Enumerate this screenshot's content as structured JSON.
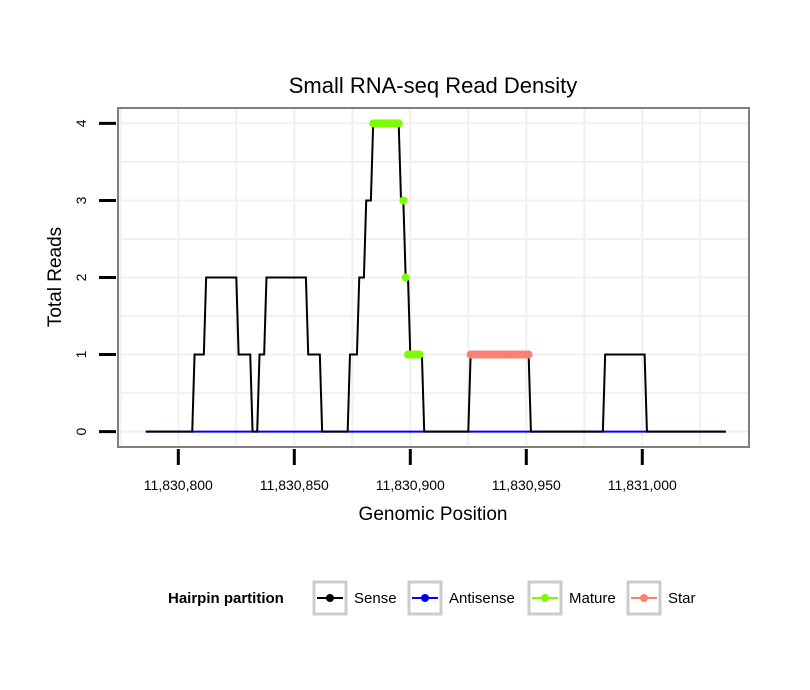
{
  "chart_data": {
    "type": "line",
    "title": "Small RNA-seq Read Density",
    "xlabel": "Genomic Position",
    "ylabel": "Total Reads",
    "xlim": [
      11830774,
      11831046
    ],
    "ylim": [
      -0.2,
      4.2
    ],
    "xticks": [
      11830800,
      11830850,
      11830900,
      11830950,
      11831000
    ],
    "xtick_labels": [
      "11,830,800",
      "11,830,850",
      "11,830,900",
      "11,830,950",
      "11,831,000"
    ],
    "yticks": [
      0,
      1,
      2,
      3,
      4
    ],
    "ytick_labels": [
      "0",
      "1",
      "2",
      "3",
      "4"
    ],
    "grid": true,
    "legend": {
      "title": "Hairpin partition",
      "position": "bottom",
      "entries": [
        {
          "label": "Sense",
          "color": "#000000"
        },
        {
          "label": "Antisense",
          "color": "#0000ff"
        },
        {
          "label": "Mature",
          "color": "#7cfc00"
        },
        {
          "label": "Star",
          "color": "#fa8072"
        }
      ]
    },
    "series": [
      {
        "name": "Sense",
        "color": "#000000",
        "x": [
          11830786,
          11830806,
          11830807,
          11830811,
          11830812,
          11830825,
          11830826,
          11830831,
          11830832,
          11830834,
          11830835,
          11830837,
          11830838,
          11830855,
          11830856,
          11830861,
          11830862,
          11830873,
          11830874,
          11830877,
          11830878,
          11830880,
          11830881,
          11830883,
          11830884,
          11830895,
          11830896,
          11830897,
          11830898,
          11830899,
          11830900,
          11830905,
          11830906,
          11830925,
          11830926,
          11830951,
          11830952,
          11830983,
          11830984,
          11831001,
          11831002,
          11831036
        ],
        "y": [
          0,
          0,
          1,
          1,
          2,
          2,
          1,
          1,
          0,
          0,
          1,
          1,
          2,
          2,
          1,
          1,
          0,
          0,
          1,
          1,
          2,
          2,
          3,
          3,
          4,
          4,
          3,
          3,
          2,
          2,
          1,
          1,
          0,
          0,
          1,
          1,
          0,
          0,
          1,
          1,
          0,
          0
        ]
      },
      {
        "name": "Antisense",
        "color": "#0000ff",
        "x": [
          11830786,
          11831036
        ],
        "y": [
          0,
          0
        ]
      },
      {
        "name": "Mature",
        "color": "#7cfc00",
        "x": [
          11830884,
          11830885,
          11830886,
          11830887,
          11830888,
          11830889,
          11830890,
          11830891,
          11830892,
          11830893,
          11830894,
          11830895,
          11830897,
          11830898,
          11830899,
          11830900,
          11830901,
          11830902,
          11830903,
          11830904
        ],
        "y": [
          4,
          4,
          4,
          4,
          4,
          4,
          4,
          4,
          4,
          4,
          4,
          4,
          3,
          2,
          1,
          1,
          1,
          1,
          1,
          1
        ]
      },
      {
        "name": "Star",
        "color": "#fa8072",
        "x": [
          11830926,
          11830927,
          11830928,
          11830929,
          11830930,
          11830931,
          11830932,
          11830933,
          11830934,
          11830935,
          11830936,
          11830937,
          11830938,
          11830939,
          11830940,
          11830941,
          11830942,
          11830943,
          11830944,
          11830945,
          11830946,
          11830947,
          11830948,
          11830949,
          11830950,
          11830951
        ],
        "y": [
          1,
          1,
          1,
          1,
          1,
          1,
          1,
          1,
          1,
          1,
          1,
          1,
          1,
          1,
          1,
          1,
          1,
          1,
          1,
          1,
          1,
          1,
          1,
          1,
          1,
          1
        ]
      }
    ]
  }
}
